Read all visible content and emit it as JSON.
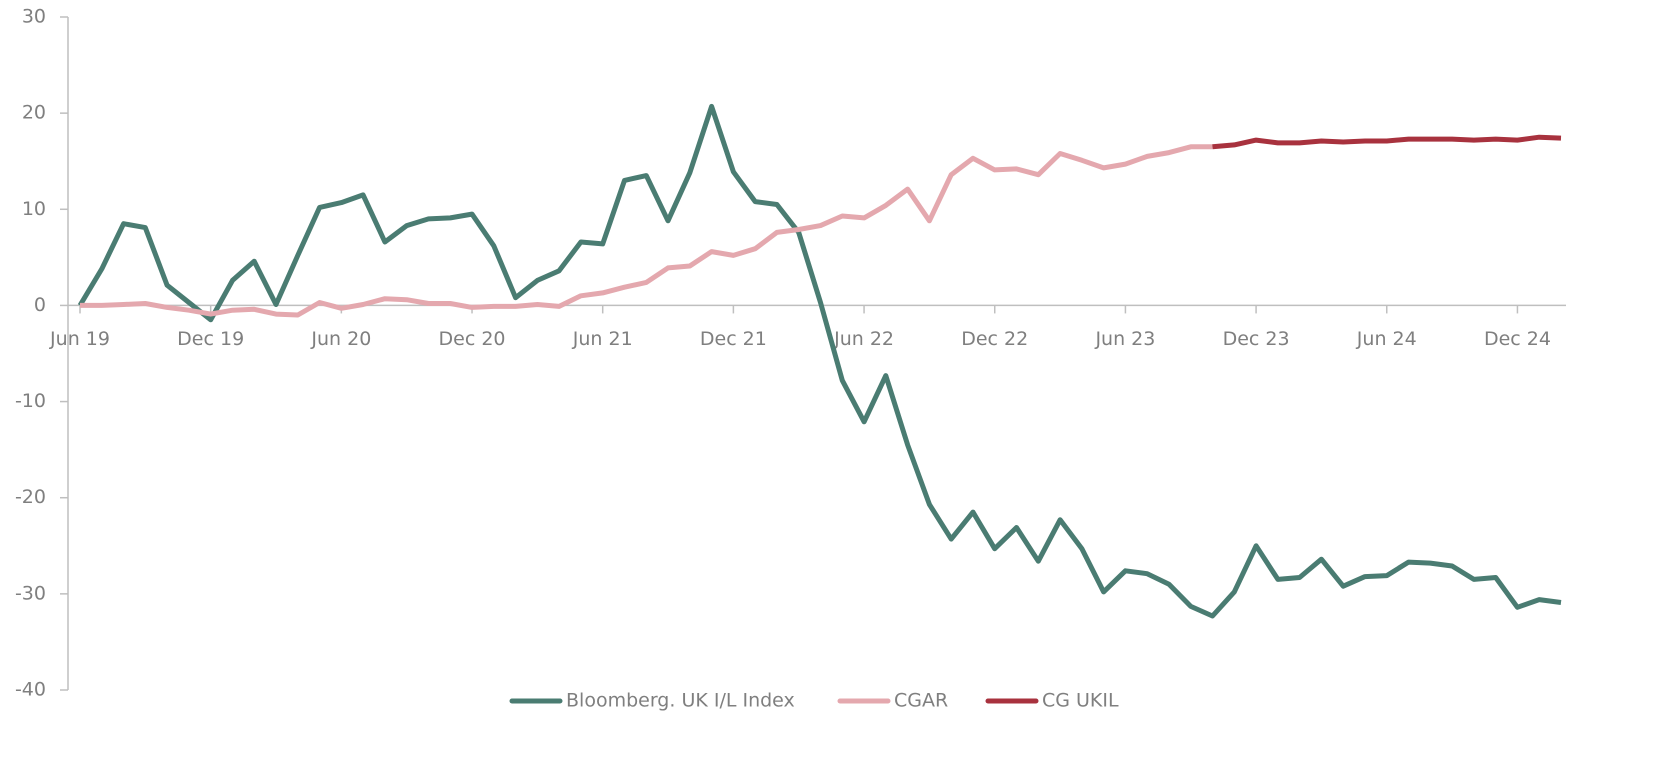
{
  "chart_data": {
    "type": "line",
    "categories": [
      "Jun 19",
      null,
      null,
      null,
      null,
      null,
      "Dec 19",
      null,
      null,
      null,
      null,
      null,
      "Jun 20",
      null,
      null,
      null,
      null,
      null,
      "Dec 20",
      null,
      null,
      null,
      null,
      null,
      "Jun 21",
      null,
      null,
      null,
      null,
      null,
      "Dec 21",
      null,
      null,
      null,
      null,
      null,
      "Jun 22",
      null,
      null,
      null,
      null,
      null,
      "Dec 22",
      null,
      null,
      null,
      null,
      null,
      "Jun 23",
      null,
      null,
      null,
      null,
      null,
      "Dec 23",
      null,
      null,
      null,
      null,
      null,
      "Jun 24",
      null,
      null,
      null,
      null,
      null,
      "Dec 24",
      null,
      null
    ],
    "series": [
      {
        "name": "Bloomberg. UK I/L Index",
        "color": "#4a7c72",
        "values": [
          0,
          3.8,
          8.5,
          8.1,
          2.1,
          0.3,
          -1.5,
          2.6,
          4.6,
          0.1,
          5.2,
          10.2,
          10.7,
          11.5,
          6.6,
          8.3,
          9.0,
          9.1,
          9.5,
          6.2,
          0.8,
          2.6,
          3.6,
          6.6,
          6.4,
          13.0,
          13.5,
          8.8,
          13.8,
          20.7,
          13.9,
          10.8,
          10.5,
          7.6,
          0.3,
          -7.8,
          -12.1,
          -7.3,
          -14.5,
          -20.7,
          -24.3,
          -21.5,
          -25.3,
          -23.1,
          -26.6,
          -22.3,
          -25.3,
          -29.8,
          -27.6,
          -27.9,
          -29.0,
          -31.3,
          -32.3,
          -29.8,
          -25.0,
          -28.5,
          -28.3,
          -26.4,
          -29.2,
          -28.2,
          -28.1,
          -26.7,
          -26.8,
          -27.1,
          -28.5,
          -28.3,
          -31.4,
          -30.6,
          -30.9
        ]
      },
      {
        "name": "CGAR",
        "color": "#e4a8ae",
        "values": [
          0,
          0,
          0.1,
          0.2,
          -0.2,
          -0.5,
          -0.9,
          -0.5,
          -0.4,
          -0.9,
          -1.0,
          0.3,
          -0.3,
          0.1,
          0.7,
          0.6,
          0.2,
          0.2,
          -0.2,
          -0.1,
          -0.1,
          0.1,
          -0.1,
          1.0,
          1.3,
          1.9,
          2.4,
          3.9,
          4.1,
          5.6,
          5.2,
          5.9,
          7.6,
          7.9,
          8.3,
          9.3,
          9.1,
          10.4,
          12.1,
          8.8,
          13.6,
          15.3,
          14.1,
          14.2,
          13.6,
          15.8,
          15.1,
          14.3,
          14.7,
          15.5,
          15.9,
          16.5,
          16.5,
          null,
          null,
          null,
          null,
          null,
          null,
          null,
          null,
          null,
          null,
          null,
          null,
          null,
          null,
          null,
          null
        ]
      },
      {
        "name": "CG UKIL",
        "color": "#a8323e",
        "values": [
          null,
          null,
          null,
          null,
          null,
          null,
          null,
          null,
          null,
          null,
          null,
          null,
          null,
          null,
          null,
          null,
          null,
          null,
          null,
          null,
          null,
          null,
          null,
          null,
          null,
          null,
          null,
          null,
          null,
          null,
          null,
          null,
          null,
          null,
          null,
          null,
          null,
          null,
          null,
          null,
          null,
          null,
          null,
          null,
          null,
          null,
          null,
          null,
          null,
          null,
          null,
          null,
          16.5,
          16.7,
          17.2,
          16.9,
          16.9,
          17.1,
          17.0,
          17.1,
          17.1,
          17.3,
          17.3,
          17.3,
          17.2,
          17.3,
          17.2,
          17.5,
          17.4
        ]
      }
    ],
    "ylim": [
      -40,
      30
    ],
    "yticks": [
      -40,
      -30,
      -20,
      -10,
      0,
      10,
      20,
      30
    ],
    "legend": "bottom"
  }
}
